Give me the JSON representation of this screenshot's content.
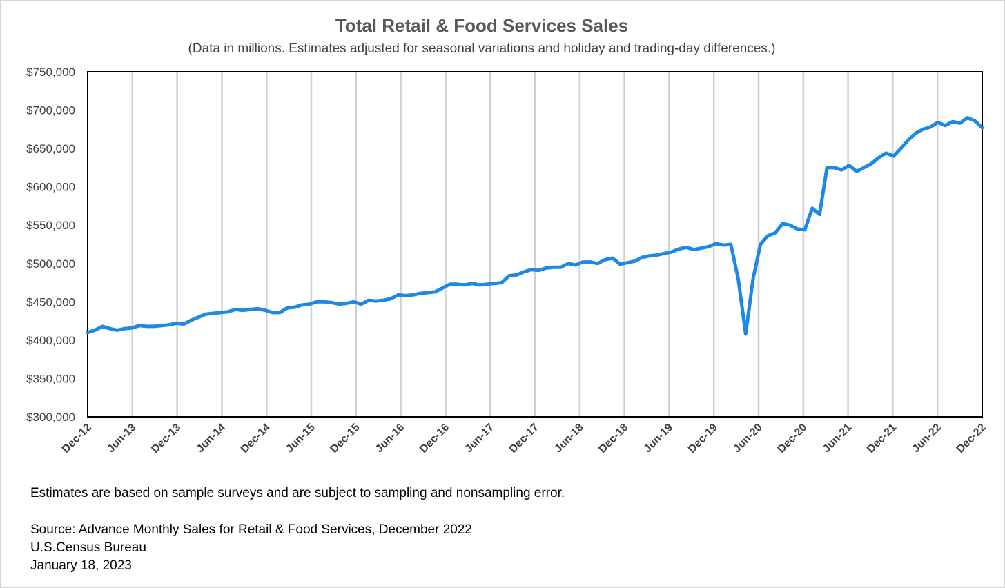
{
  "chart_data": {
    "type": "line",
    "title": "Total Retail & Food Services Sales",
    "subtitle": "(Data in millions. Estimates adjusted for seasonal variations and holiday and trading-day differences.)",
    "xlabel": "",
    "ylabel": "",
    "ylim": [
      300000,
      750000
    ],
    "y_ticks": [
      "$300,000",
      "$350,000",
      "$400,000",
      "$450,000",
      "$500,000",
      "$550,000",
      "$600,000",
      "$650,000",
      "$700,000",
      "$750,000"
    ],
    "x_ticks": [
      "Dec-12",
      "Jun-13",
      "Dec-13",
      "Jun-14",
      "Dec-14",
      "Jun-15",
      "Dec-15",
      "Jun-16",
      "Dec-16",
      "Jun-17",
      "Dec-17",
      "Jun-18",
      "Dec-18",
      "Jun-19",
      "Dec-19",
      "Jun-20",
      "Dec-20",
      "Jun-21",
      "Dec-21",
      "Jun-22",
      "Dec-22"
    ],
    "x_range": [
      "Dec-12",
      "Dec-22"
    ],
    "grid": "vertical",
    "legend": "none",
    "color": "#1e88e5",
    "series": [
      {
        "values": [
          410000,
          413000,
          418000,
          415000,
          413000,
          415000,
          416000,
          419000,
          418000,
          418000,
          419000,
          420000,
          422000,
          421000,
          426000,
          430000,
          434000,
          435000,
          436000,
          437000,
          440000,
          439000,
          440000,
          441000,
          439000,
          436000,
          436000,
          442000,
          443000,
          446000,
          447000,
          450000,
          450000,
          449000,
          447000,
          448000,
          450000,
          447000,
          452000,
          451000,
          452000,
          454000,
          459000,
          458000,
          459000,
          461000,
          462000,
          463000,
          468000,
          473000,
          473000,
          472000,
          474000,
          472000,
          473000,
          474000,
          475000,
          484000,
          485000,
          489000,
          492000,
          491000,
          494000,
          495000,
          495000,
          500000,
          498000,
          502000,
          502000,
          500000,
          505000,
          507000,
          499000,
          501000,
          503000,
          508000,
          510000,
          511000,
          513000,
          515000,
          519000,
          521000,
          518000,
          520000,
          522000,
          526000,
          524000,
          525000,
          480000,
          408000,
          480000,
          525000,
          536000,
          540000,
          552000,
          550000,
          545000,
          544000,
          572000,
          564000,
          625000,
          625000,
          622000,
          628000,
          620000,
          625000,
          630000,
          638000,
          644000,
          640000,
          650000,
          661000,
          670000,
          675000,
          678000,
          684000,
          680000,
          685000,
          683000,
          690000,
          686000,
          677000
        ]
      }
    ]
  },
  "footnote": "Estimates are based on sample surveys and are subject to sampling and nonsampling error.",
  "source_line1": "Source: Advance Monthly Sales for Retail & Food Services, December 2022",
  "source_line2": "U.S.Census Bureau",
  "source_line3": "January 18, 2023"
}
